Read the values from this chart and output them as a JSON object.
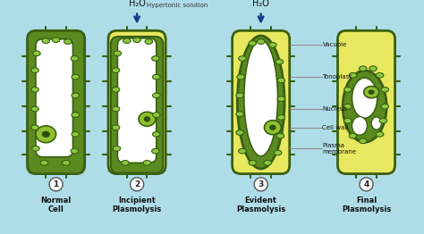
{
  "bg_color": "#aedde8",
  "cell_wall_green": "#5a8a20",
  "cell_wall_dark": "#3a6010",
  "light_green": "#8cc840",
  "vacuole_white": "#ffffff",
  "nucleus_green": "#90c030",
  "nucleus_dark": "#2a5010",
  "yellow_fill": "#e8e860",
  "arrow_color": "#1a3a8a",
  "water_label": "H₂O",
  "hypertonic_label": "Hypertonic solution",
  "annotations": [
    "Vacuole",
    "Tonoplast",
    "Nucleus",
    "Cell wall",
    "Plasma\nmembrane"
  ],
  "cell_labels": [
    "Normal\nCell",
    "Incipient\nPlasmolysis",
    "Evident\nPlasmolysis",
    "Final\nPlasmolysis"
  ],
  "cell_numbers": [
    "1",
    "2",
    "3",
    "4"
  ]
}
